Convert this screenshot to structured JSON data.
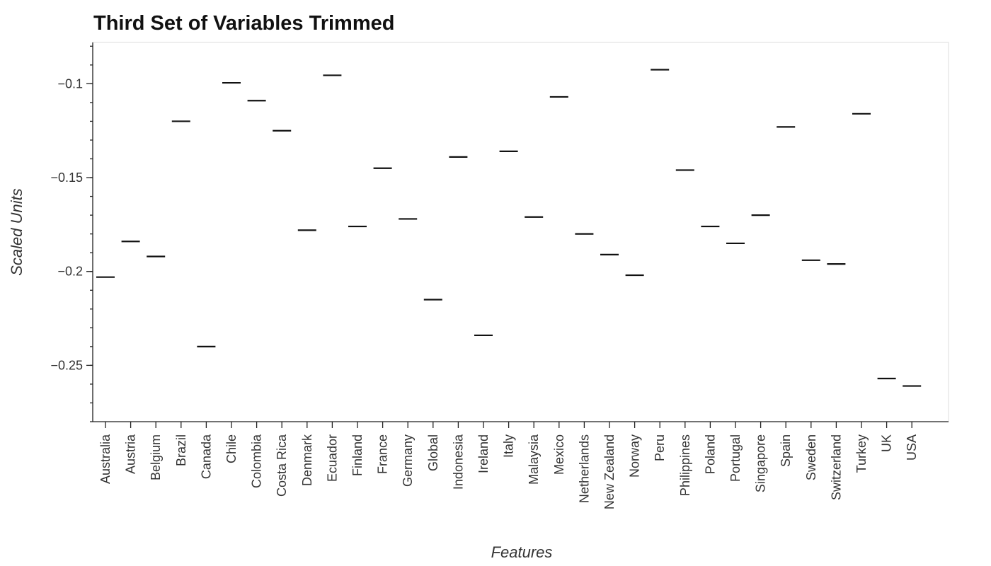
{
  "chart_data": {
    "type": "box",
    "title": "Third Set of Variables Trimmed",
    "xlabel": "Features",
    "ylabel": "Scaled Units",
    "ylim": [
      -0.28,
      -0.078
    ],
    "yticks": [
      -0.25,
      -0.2,
      -0.15,
      -0.1
    ],
    "ytick_labels": [
      "−0.25",
      "−0.2",
      "−0.15",
      "−0.1"
    ],
    "grid": false,
    "categories": [
      "Australia",
      "Austria",
      "Belgium",
      "Brazil",
      "Canada",
      "Chile",
      "Colombia",
      "Costa Rica",
      "Denmark",
      "Ecuador",
      "Finland",
      "France",
      "Germany",
      "Global",
      "Indonesia",
      "Ireland",
      "Italy",
      "Malaysia",
      "Mexico",
      "Netherlands",
      "New Zealand",
      "Norway",
      "Peru",
      "Philippines",
      "Poland",
      "Portugal",
      "Singapore",
      "Spain",
      "Sweden",
      "Switzerland",
      "Turkey",
      "UK",
      "USA"
    ],
    "values": [
      -0.203,
      -0.184,
      -0.192,
      -0.12,
      -0.24,
      -0.0995,
      -0.109,
      -0.125,
      -0.178,
      -0.0955,
      -0.176,
      -0.145,
      -0.172,
      -0.215,
      -0.139,
      -0.234,
      -0.136,
      -0.171,
      -0.107,
      -0.18,
      -0.191,
      -0.202,
      -0.0925,
      -0.146,
      -0.176,
      -0.185,
      -0.17,
      -0.123,
      -0.194,
      -0.196,
      -0.116,
      -0.257,
      -0.261
    ]
  }
}
